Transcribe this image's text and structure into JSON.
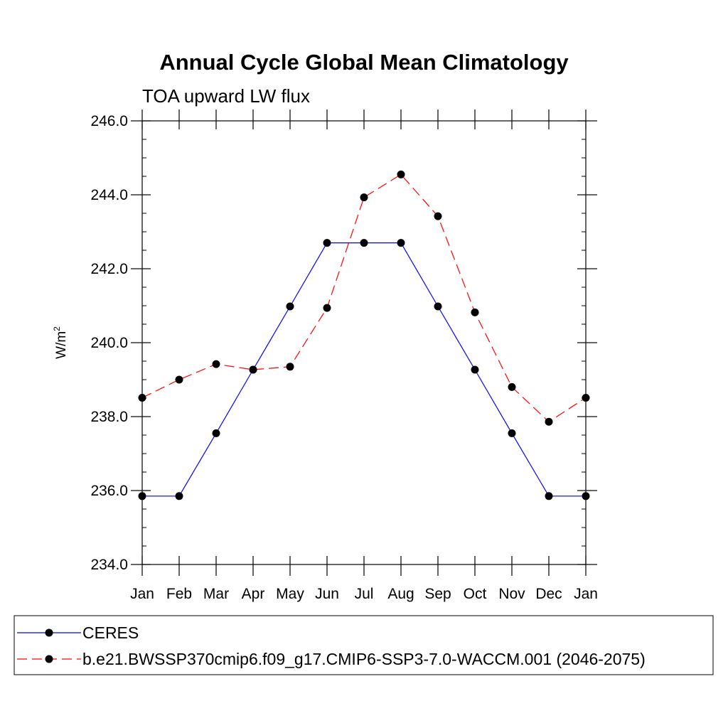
{
  "chart_data": {
    "type": "line",
    "title": "Annual Cycle Global Mean Climatology",
    "subtitle": "TOA upward LW flux",
    "ylabel": "W/m",
    "ylabel_sup": "2",
    "xlabel": "",
    "categories": [
      "Jan",
      "Feb",
      "Mar",
      "Apr",
      "May",
      "Jun",
      "Jul",
      "Aug",
      "Sep",
      "Oct",
      "Nov",
      "Dec",
      "Jan"
    ],
    "ylim": [
      234.0,
      246.0
    ],
    "yticks": [
      "234.0",
      "236.0",
      "238.0",
      "240.0",
      "242.0",
      "244.0",
      "246.0"
    ],
    "grid": false,
    "legend_position": "bottom",
    "series": [
      {
        "name": "CERES",
        "color": "#0000ff",
        "dash": "solid",
        "values": [
          235.85,
          235.85,
          237.55,
          239.27,
          240.98,
          242.7,
          242.7,
          242.7,
          240.98,
          239.27,
          237.55,
          235.85,
          235.85
        ]
      },
      {
        "name": "b.e21.BWSSP370cmip6.f09_g17.CMIP6-SSP3-7.0-WACCM.001 (2046-2075)",
        "color": "#ff0000",
        "dash": "dashed",
        "values": [
          238.51,
          239.0,
          239.42,
          239.27,
          239.35,
          240.94,
          243.93,
          244.55,
          243.42,
          240.82,
          238.8,
          237.86,
          238.51
        ]
      }
    ]
  }
}
